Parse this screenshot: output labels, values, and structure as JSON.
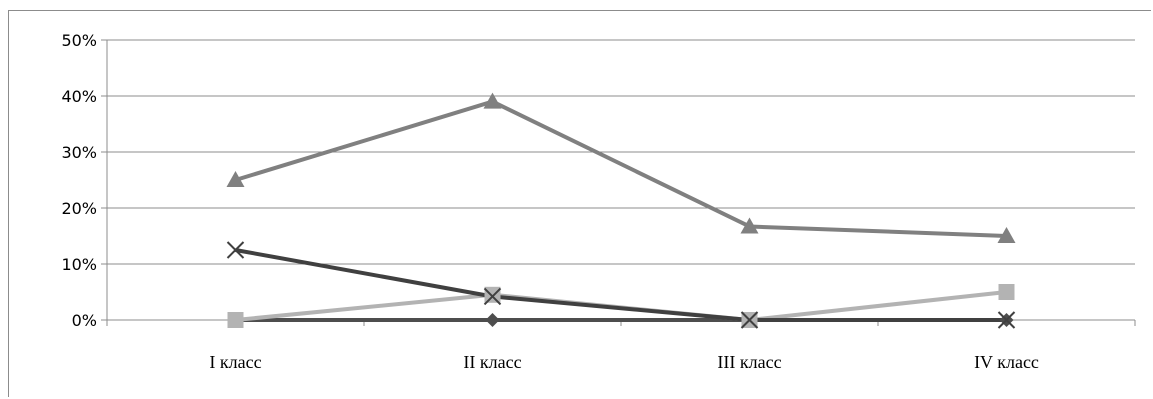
{
  "chart_data": {
    "type": "line",
    "title": "",
    "xlabel": "",
    "ylabel": "",
    "categories": [
      "I класс",
      "II класс",
      "III класс",
      "IV класс"
    ],
    "ylim": [
      0,
      50
    ],
    "yticks": [
      "0%",
      "10%",
      "20%",
      "30%",
      "40%",
      "50%"
    ],
    "y_unit": "%",
    "grid": true,
    "legend": "none",
    "series": [
      {
        "values": [
          0,
          0,
          0,
          0
        ],
        "color": "#4d4d4d",
        "marker": "diamond"
      },
      {
        "values": [
          0,
          4.5,
          0,
          5
        ],
        "color": "#b3b3b3",
        "marker": "square"
      },
      {
        "values": [
          25,
          39,
          16.7,
          15
        ],
        "color": "#808080",
        "marker": "triangle"
      },
      {
        "values": [
          12.5,
          4.2,
          0,
          0
        ],
        "color": "#404040",
        "marker": "x"
      }
    ]
  }
}
